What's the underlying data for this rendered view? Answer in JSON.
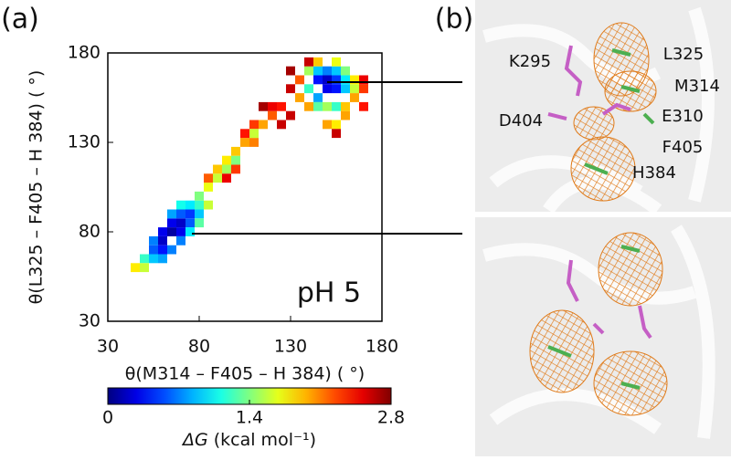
{
  "panel_labels": [
    "(a)",
    "(b)"
  ],
  "chart_data": {
    "type": "heatmap",
    "xlabel": "θ(M314 – F405 – H 384) ( °)",
    "ylabel": "θ(L325 – F405 – H 384) ( °)",
    "annotation": "pH 5",
    "xlim": [
      30,
      180
    ],
    "ylim": [
      30,
      180
    ],
    "xticks": [
      30,
      80,
      130,
      180
    ],
    "yticks": [
      30,
      80,
      130,
      180
    ],
    "colormap": "jet",
    "colorbar_lim": [
      0,
      2.8
    ],
    "colorbar_ticks": [
      0,
      1.4,
      2.8
    ],
    "colorbar_label_symbol": "ΔG",
    "colorbar_label_unit": "(kcal mol⁻¹)",
    "x": [
      60,
      65,
      70,
      65,
      60,
      55,
      70,
      75,
      55,
      50,
      45,
      50,
      60,
      75,
      80,
      80,
      70,
      65,
      70,
      75,
      85,
      60,
      55,
      65,
      70,
      75,
      80,
      80,
      85,
      90,
      85,
      90,
      95,
      95,
      100,
      100,
      105,
      110,
      105,
      110,
      115,
      120,
      120,
      115,
      125,
      110,
      100,
      95,
      125,
      130,
      135,
      135,
      140,
      140,
      145,
      145,
      145,
      150,
      150,
      150,
      155,
      155,
      155,
      160,
      160,
      160,
      165,
      165,
      165,
      170,
      170,
      155,
      150,
      150,
      155,
      160,
      155,
      145,
      140,
      145,
      155,
      140,
      130,
      130,
      160,
      170
    ],
    "y": [
      75,
      80,
      85,
      85,
      70,
      70,
      80,
      90,
      65,
      65,
      60,
      60,
      65,
      85,
      90,
      95,
      90,
      90,
      95,
      95,
      95,
      80,
      75,
      70,
      75,
      80,
      85,
      100,
      105,
      110,
      110,
      115,
      115,
      120,
      120,
      125,
      130,
      130,
      135,
      140,
      140,
      145,
      150,
      150,
      150,
      135,
      115,
      110,
      140,
      145,
      155,
      165,
      160,
      170,
      155,
      165,
      170,
      160,
      165,
      170,
      160,
      165,
      170,
      160,
      165,
      170,
      160,
      165,
      155,
      160,
      150,
      150,
      150,
      140,
      140,
      145,
      135,
      150,
      150,
      175,
      175,
      175,
      160,
      170,
      150,
      165
    ],
    "values": [
      0.2,
      0.1,
      0.2,
      0.3,
      0.4,
      0.6,
      0.3,
      0.5,
      0.9,
      1.2,
      1.8,
      1.6,
      0.8,
      0.6,
      0.9,
      1.2,
      0.6,
      0.8,
      1.1,
      1.0,
      1.6,
      0.3,
      0.7,
      0.7,
      0.7,
      1.0,
      1.3,
      1.4,
      1.7,
      1.6,
      2.2,
      1.9,
      1.5,
      1.8,
      1.4,
      1.9,
      2.0,
      2.1,
      2.4,
      2.3,
      2.0,
      2.2,
      2.5,
      2.7,
      2.4,
      1.6,
      2.3,
      2.5,
      2.6,
      2.6,
      2.0,
      2.2,
      1.2,
      1.5,
      0.8,
      0.4,
      0.9,
      0.3,
      0.2,
      0.7,
      0.4,
      0.5,
      0.9,
      0.9,
      1.0,
      1.4,
      1.6,
      1.8,
      2.0,
      2.3,
      2.4,
      1.2,
      1.5,
      2.0,
      1.8,
      2.0,
      2.6,
      1.3,
      2.0,
      1.9,
      1.7,
      2.6,
      2.6,
      2.7,
      1.9,
      2.5
    ]
  },
  "residue_labels": [
    "K295",
    "L325",
    "M314",
    "D404",
    "E310",
    "F405",
    "H384"
  ]
}
